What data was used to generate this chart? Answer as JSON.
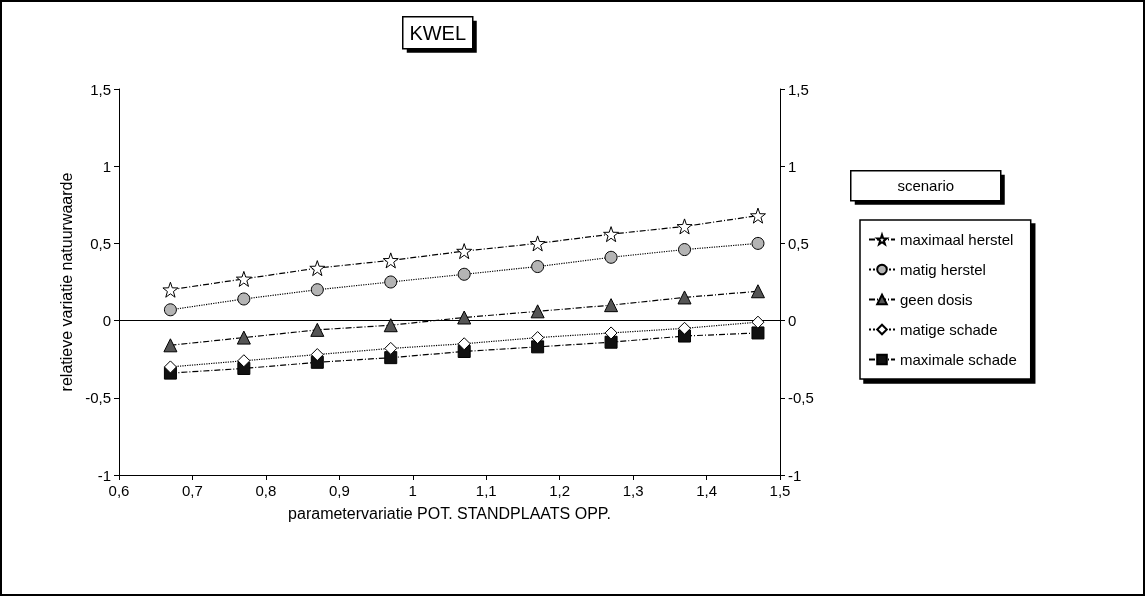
{
  "chart_data": {
    "type": "line",
    "title": "KWEL",
    "xlabel": "parametervariatie POT. STANDPLAATS OPP.",
    "ylabel": "relatieve variatie natuurwaarde",
    "legend_title": "scenario",
    "legend": "right",
    "x": [
      0.67,
      0.77,
      0.87,
      0.97,
      1.07,
      1.17,
      1.27,
      1.37,
      1.47
    ],
    "series": [
      {
        "name": "maximaal herstel",
        "color": "#ffffff",
        "marker": "star",
        "line_style": "dashed",
        "values": [
          0.2,
          0.27,
          0.34,
          0.39,
          0.45,
          0.5,
          0.56,
          0.61,
          0.68
        ]
      },
      {
        "name": "matig herstel",
        "color": "#b4b4b4",
        "marker": "circle",
        "line_style": "dotted",
        "values": [
          0.07,
          0.14,
          0.2,
          0.25,
          0.3,
          0.35,
          0.41,
          0.46,
          0.5
        ]
      },
      {
        "name": "geen dosis",
        "color": "#555555",
        "marker": "triangle",
        "line_style": "dashed",
        "values": [
          -0.16,
          -0.11,
          -0.06,
          -0.03,
          0.02,
          0.06,
          0.1,
          0.15,
          0.19
        ]
      },
      {
        "name": "matige schade",
        "color": "#ffffff",
        "marker": "diamond",
        "line_style": "dotted",
        "values": [
          -0.3,
          -0.26,
          -0.22,
          -0.18,
          -0.15,
          -0.11,
          -0.08,
          -0.05,
          -0.01
        ]
      },
      {
        "name": "maximale schade",
        "color": "#111111",
        "marker": "square",
        "line_style": "dashed",
        "values": [
          -0.34,
          -0.31,
          -0.27,
          -0.24,
          -0.2,
          -0.17,
          -0.14,
          -0.1,
          -0.08
        ]
      }
    ],
    "xlim": [
      0.6,
      1.5
    ],
    "xticks": [
      {
        "value": 0.6,
        "label": "0,6"
      },
      {
        "value": 0.7,
        "label": "0,7"
      },
      {
        "value": 0.8,
        "label": "0,8"
      },
      {
        "value": 0.9,
        "label": "0,9"
      },
      1,
      {
        "value": 1.1,
        "label": "1,1"
      },
      {
        "value": 1.2,
        "label": "1,2"
      },
      {
        "value": 1.3,
        "label": "1,3"
      },
      {
        "value": 1.4,
        "label": "1,4"
      },
      {
        "value": 1.5,
        "label": "1,5"
      }
    ],
    "ylim": [
      -1,
      1.5
    ],
    "yticks": [
      -1,
      {
        "value": -0.5,
        "label": "-0,5"
      },
      0,
      {
        "value": 0.5,
        "label": "0,5"
      },
      1,
      {
        "value": 1.5,
        "label": "1,5"
      }
    ],
    "y2lim": [
      -1,
      1.5
    ],
    "y2ticks": [
      -1,
      {
        "value": -0.5,
        "label": "-0,5"
      },
      0,
      {
        "value": 0.5,
        "label": "0,5"
      },
      1,
      {
        "value": 1.5,
        "label": "1,5"
      }
    ],
    "ref_lines": [
      {
        "axis": "y",
        "value": 0,
        "label": null,
        "color": "#000000",
        "line_style": "solid"
      }
    ],
    "grid": false
  }
}
